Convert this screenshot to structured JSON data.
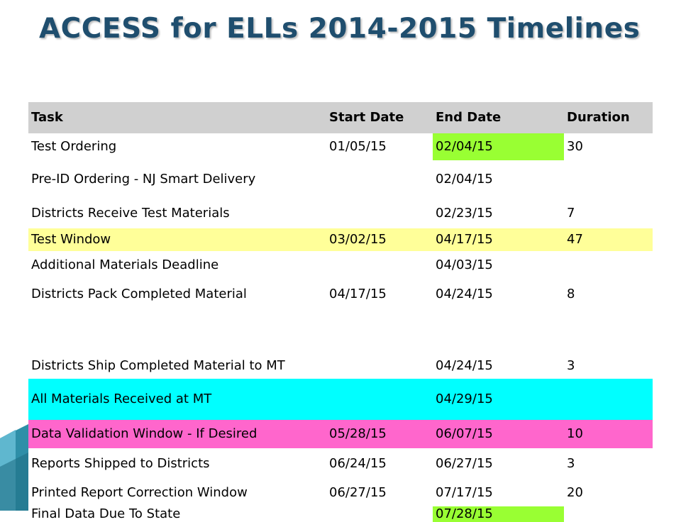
{
  "title": "ACCESS for ELLs 2014-2015 Timelines",
  "colors": {
    "header": "#d0d0d0",
    "highlight_green": "#99ff33",
    "highlight_yellow": "#ffff99",
    "highlight_cyan": "#00ffff",
    "highlight_pink": "#ff66cc"
  },
  "table": {
    "headers": [
      "Task",
      "Start Date",
      "End Date",
      "Duration"
    ],
    "rows": [
      {
        "task": "Test Ordering",
        "start": "01/05/15",
        "end": "02/04/15",
        "duration": "30",
        "row_highlight": "none",
        "end_highlight": "green"
      },
      {
        "task": "Pre-ID Ordering - NJ Smart Delivery",
        "start": "",
        "end": "02/04/15",
        "duration": "",
        "row_highlight": "none",
        "end_highlight": "none"
      },
      {
        "task": "Districts Receive Test Materials",
        "start": "",
        "end": "02/23/15",
        "duration": "7",
        "row_highlight": "none",
        "end_highlight": "none"
      },
      {
        "task": "Test Window",
        "start": "03/02/15",
        "end": "04/17/15",
        "duration": "47",
        "row_highlight": "yellow",
        "end_highlight": "none"
      },
      {
        "task": "Additional Materials Deadline",
        "start": "",
        "end": "04/03/15",
        "duration": "",
        "row_highlight": "none",
        "end_highlight": "none"
      },
      {
        "task": "Districts Pack Completed Material",
        "start": "04/17/15",
        "end": "04/24/15",
        "duration": "8",
        "row_highlight": "none",
        "end_highlight": "none"
      },
      {
        "task": "Districts Ship Completed Material to MT",
        "start": "",
        "end": "04/24/15",
        "duration": "3",
        "row_highlight": "none",
        "end_highlight": "none"
      },
      {
        "task": "All Materials Received at MT",
        "start": "",
        "end": "04/29/15",
        "duration": "",
        "row_highlight": "cyan",
        "end_highlight": "none"
      },
      {
        "task": "Data Validation Window - If Desired",
        "start": "05/28/15",
        "end": "06/07/15",
        "duration": "10",
        "row_highlight": "pink",
        "end_highlight": "none"
      },
      {
        "task": "Reports Shipped to Districts",
        "start": "06/24/15",
        "end": "06/27/15",
        "duration": "3",
        "row_highlight": "none",
        "end_highlight": "none"
      },
      {
        "task": "Printed Report Correction Window",
        "start": "06/27/15",
        "end": "07/17/15",
        "duration": "20",
        "row_highlight": "none",
        "end_highlight": "none"
      },
      {
        "task": "Final Data Due To State",
        "start": "",
        "end": "07/28/15",
        "duration": "",
        "row_highlight": "none",
        "end_highlight": "green"
      }
    ]
  }
}
